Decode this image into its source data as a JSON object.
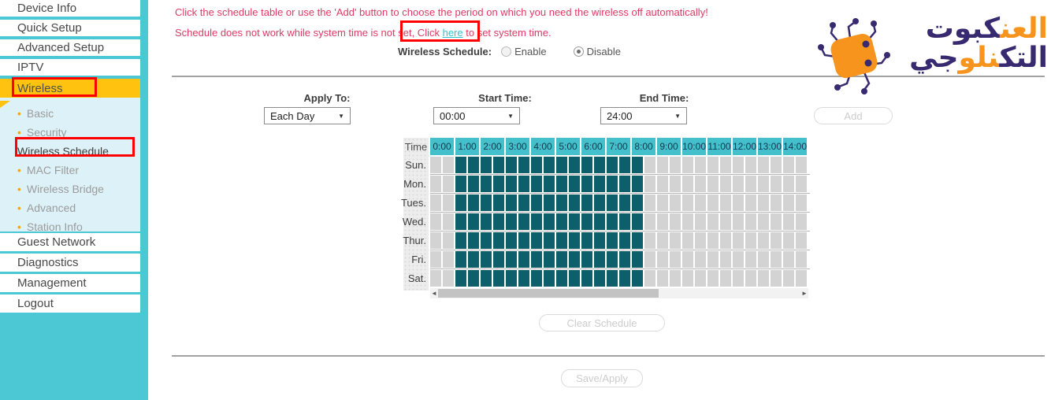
{
  "sidebar": {
    "items": [
      {
        "label": "Device Info"
      },
      {
        "label": "Quick Setup"
      },
      {
        "label": "Advanced Setup"
      },
      {
        "label": "IPTV"
      },
      {
        "label": "Wireless",
        "active": true
      },
      {
        "label": "Guest Network"
      },
      {
        "label": "Diagnostics"
      },
      {
        "label": "Management"
      },
      {
        "label": "Logout"
      }
    ],
    "submenu": [
      {
        "label": "Basic"
      },
      {
        "label": "Security"
      },
      {
        "label": "Wireless Schedule",
        "current": true
      },
      {
        "label": "MAC Filter"
      },
      {
        "label": "Wireless Bridge"
      },
      {
        "label": "Advanced"
      },
      {
        "label": "Station Info"
      }
    ]
  },
  "notes": {
    "line1": "Click the schedule table or use the 'Add' button to choose the period on which you need the wireless off automatically!",
    "line2_prefix": "Schedule does not work while system time is not set, Click ",
    "line2_link": "here",
    "line2_suffix": " to set system time."
  },
  "wireless_schedule": {
    "label": "Wireless Schedule:",
    "enable": "Enable",
    "disable": "Disable",
    "selected": "Disable"
  },
  "form": {
    "apply_to_label": "Apply To:",
    "apply_to_value": "Each Day",
    "start_time_label": "Start Time:",
    "start_time_value": "00:00",
    "end_time_label": "End Time:",
    "end_time_value": "24:00",
    "add_label": "Add"
  },
  "table": {
    "corner_label": "Time",
    "hours": [
      "0:00",
      "1:00",
      "2:00",
      "3:00",
      "4:00",
      "5:00",
      "6:00",
      "7:00",
      "8:00",
      "9:00",
      "10:00",
      "11:00",
      "12:00",
      "13:00",
      "14:00"
    ],
    "days": [
      "Sun.",
      "Mon.",
      "Tues.",
      "Wed.",
      "Thur.",
      "Fri.",
      "Sat."
    ],
    "slots_per_hour": 2,
    "selected_slot_start": 2,
    "selected_slot_end": 16
  },
  "buttons": {
    "clear": "Clear Schedule",
    "save": "Save/Apply"
  },
  "logo": {
    "line1_a": "العن",
    "line1_b": "كبوت",
    "line2_a": "التك",
    "line2_b": "نلو",
    "line2_c": "جي"
  },
  "colors": {
    "sidebar_teal": "#4bc8d4",
    "active_yellow": "#ffc20e",
    "submenu_bg": "#ddf2f8",
    "header_teal": "#44bfcc",
    "cell_selected": "#0c5f6b",
    "cell_unselected": "#d3d3d3",
    "note_red": "#dd3a64",
    "link_teal": "#2fc1d3",
    "annotation_red": "#ff0000",
    "logo_orange": "#f7941d",
    "logo_navy": "#372a70"
  }
}
